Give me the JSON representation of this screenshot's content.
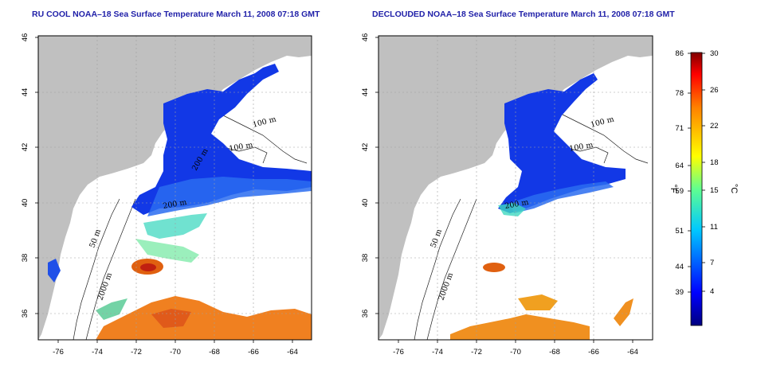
{
  "panels": [
    {
      "title": "RU COOL NOAA–18 Sea Surface Temperature March 11, 2008 07:18 GMT",
      "contour_labels": [
        "100 m",
        "100 m",
        "200 m",
        "50 m",
        "2000 m",
        "200 m"
      ]
    },
    {
      "title": "DECLOUDED NOAA–18 Sea Surface Temperature March 11, 2008 07:18 GMT",
      "contour_labels": [
        "100 m",
        "100 m",
        "200 m",
        "50 m",
        "2000 m"
      ]
    }
  ],
  "x_ticks": [
    "-76",
    "-74",
    "-72",
    "-70",
    "-68",
    "-66",
    "-64"
  ],
  "y_ticks": [
    "46",
    "44",
    "42",
    "40",
    "38",
    "36"
  ],
  "colorbar": {
    "fahrenheit_ticks": [
      "86",
      "78",
      "71",
      "64",
      "59",
      "51",
      "44",
      "39"
    ],
    "celsius_ticks": [
      "30",
      "26",
      "22",
      "18",
      "15",
      "11",
      "7",
      "4"
    ],
    "fahrenheit_unit": "°F",
    "celsius_unit": "°C"
  },
  "colors": {
    "land": "#c0c0c0",
    "title": "#1f1fa8",
    "cold": "#1030e0",
    "warm": "#f07010"
  }
}
